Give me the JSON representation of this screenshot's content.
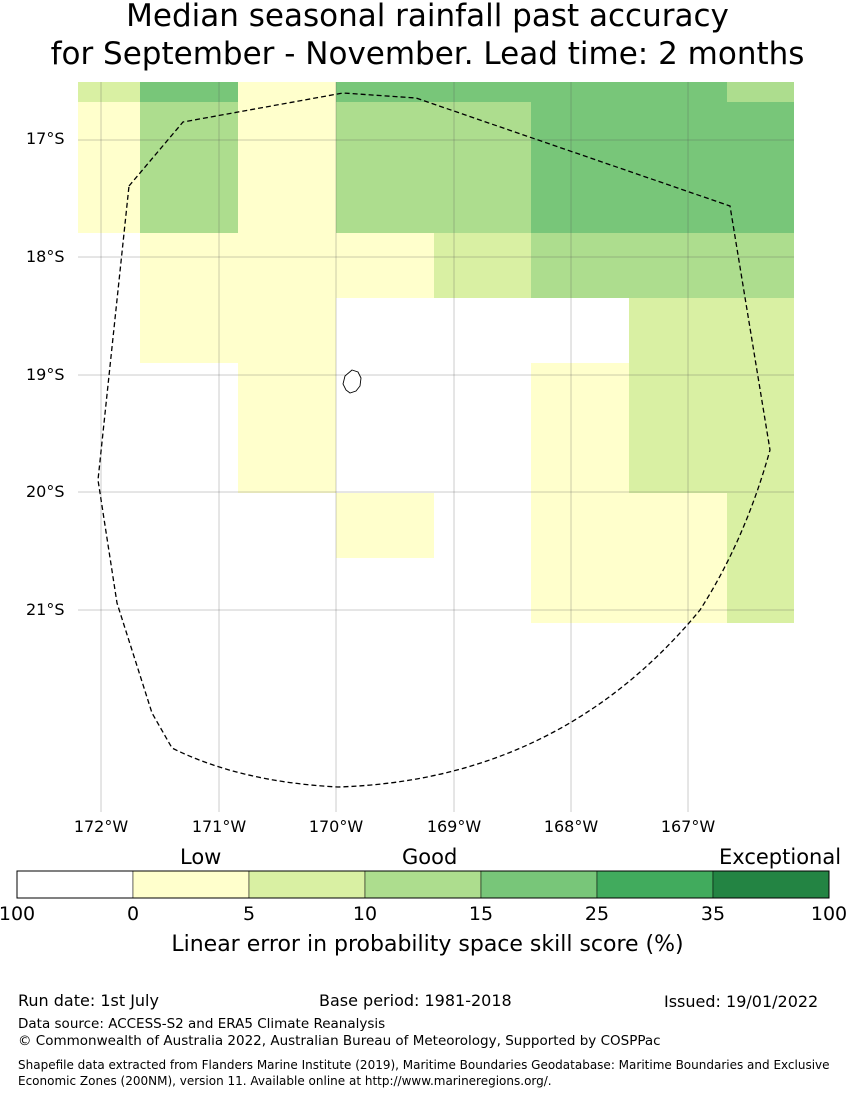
{
  "title": {
    "line1": "Median seasonal rainfall past accuracy",
    "line2": "for September - November. Lead time: 2 months"
  },
  "map": {
    "lat_labels": [
      "17°S",
      "18°S",
      "19°S",
      "20°S",
      "21°S"
    ],
    "lon_labels": [
      "172°W",
      "171°W",
      "170°W",
      "169°W",
      "168°W",
      "167°W"
    ],
    "colors": {
      "none": "#ffffff",
      "c0_5": "#ffffcc",
      "c5_10": "#d9f0a3",
      "c10_15": "#addd8e",
      "c15_25": "#78c679",
      "c25_35": "#41ab5d",
      "c35_100": "#238443"
    }
  },
  "legend": {
    "category_labels": {
      "low": "Low",
      "good": "Good",
      "exceptional": "Exceptional"
    },
    "ticks": [
      "100",
      "0",
      "5",
      "10",
      "15",
      "25",
      "35",
      "100"
    ],
    "colors": [
      "#ffffff",
      "#ffffcc",
      "#d9f0a3",
      "#addd8e",
      "#78c679",
      "#41ab5d",
      "#238443"
    ],
    "title": "Linear error in probability space skill score (%)"
  },
  "footer": {
    "run_date": "Run date: 1st July",
    "base_period": "Base period: 1981-2018",
    "issued": "Issued: 19/01/2022",
    "data_source": "Data source: ACCESS-S2 and ERA5 Climate Reanalysis",
    "copyright": "© Commonwealth of Australia 2022, Australian Bureau of Meteorology, Supported by COSPPac",
    "shapefile_line1": "Shapefile data extracted from Flanders Marine Institute (2019), Maritime Boundaries Geodatabase: Maritime Boundaries and Exclusive",
    "shapefile_line2": "Economic Zones (200NM), version 11. Available online at http://www.marineregions.org/."
  }
}
